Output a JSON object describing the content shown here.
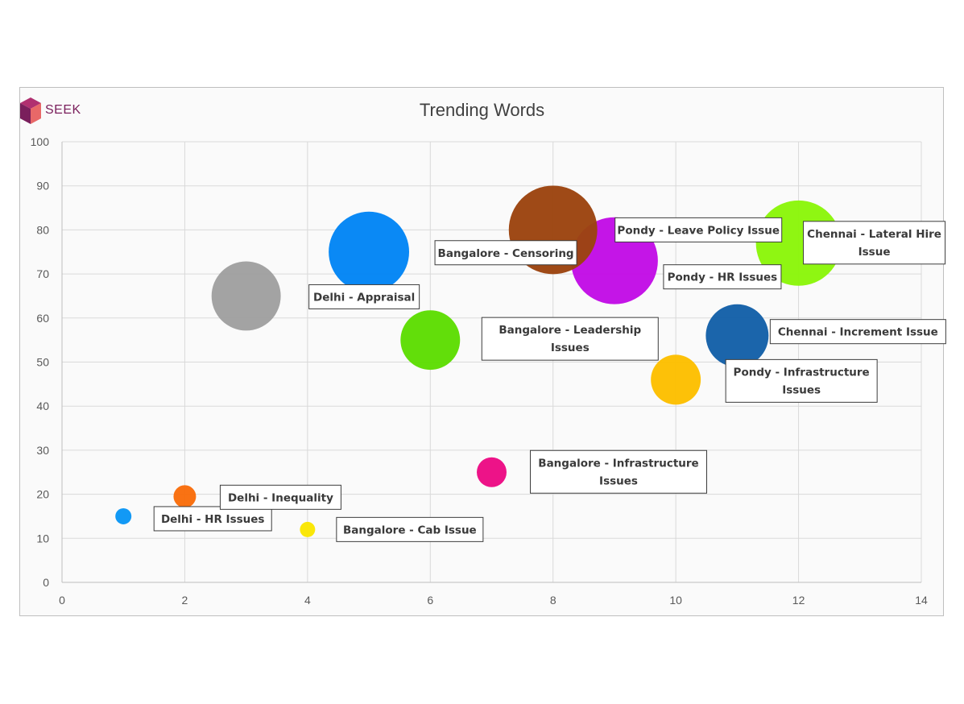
{
  "logo": {
    "text": "SEEK",
    "icon": "cube-icon",
    "colors": {
      "top": "#b03070",
      "left": "#7a1f5c",
      "right": "#e06060"
    }
  },
  "chart_data": {
    "type": "bubble",
    "title": "Trending Words",
    "xlabel": "",
    "ylabel": "",
    "xlim": [
      0,
      14
    ],
    "ylim": [
      0,
      100
    ],
    "x_ticks": [
      0,
      2,
      4,
      6,
      8,
      10,
      12,
      14
    ],
    "y_ticks": [
      0,
      10,
      20,
      30,
      40,
      50,
      60,
      70,
      80,
      90,
      100
    ],
    "grid": true,
    "legend": "none",
    "points": [
      {
        "label": "Delhi - HR Issues",
        "x": 1,
        "y": 15,
        "size": 10,
        "color": "#0a96f5"
      },
      {
        "label": "Delhi - Inequality",
        "x": 2,
        "y": 19.5,
        "size": 14,
        "color": "#f96d0b"
      },
      {
        "label": "Bangalore - Cab Issue",
        "x": 4,
        "y": 12,
        "size": 9.5,
        "color": "#fae600"
      },
      {
        "label": "Delhi - Appraisal",
        "x": 3,
        "y": 65,
        "size": 43,
        "color": "#a0a0a0"
      },
      {
        "label": "Bangalore - Censoring",
        "x": 5,
        "y": 75,
        "size": 50,
        "color": "#0285f5"
      },
      {
        "label": "Bangalore - Leadership Issues",
        "x": 6,
        "y": 55,
        "size": 37,
        "color": "#5ddd02"
      },
      {
        "label": "Bangalore - Infrastructure Issues",
        "x": 7,
        "y": 25,
        "size": 18.5,
        "color": "#ec0b84"
      },
      {
        "label": "Pondy - HR Issues",
        "x": 9,
        "y": 73,
        "size": 54,
        "color": "#c20de6"
      },
      {
        "label": "Pondy - Leave Policy Issue",
        "x": 8,
        "y": 80,
        "size": 55,
        "color": "#9c4410"
      },
      {
        "label": "Pondy - Infrastructure Issues",
        "x": 10,
        "y": 46,
        "size": 31,
        "color": "#fdbf00"
      },
      {
        "label": "Chennai - Increment Issue",
        "x": 11,
        "y": 56,
        "size": 39,
        "color": "#1460a8"
      },
      {
        "label": "Chennai - Lateral Hire Issue",
        "x": 12,
        "y": 77,
        "size": 53,
        "color": "#8bf60a"
      }
    ]
  }
}
